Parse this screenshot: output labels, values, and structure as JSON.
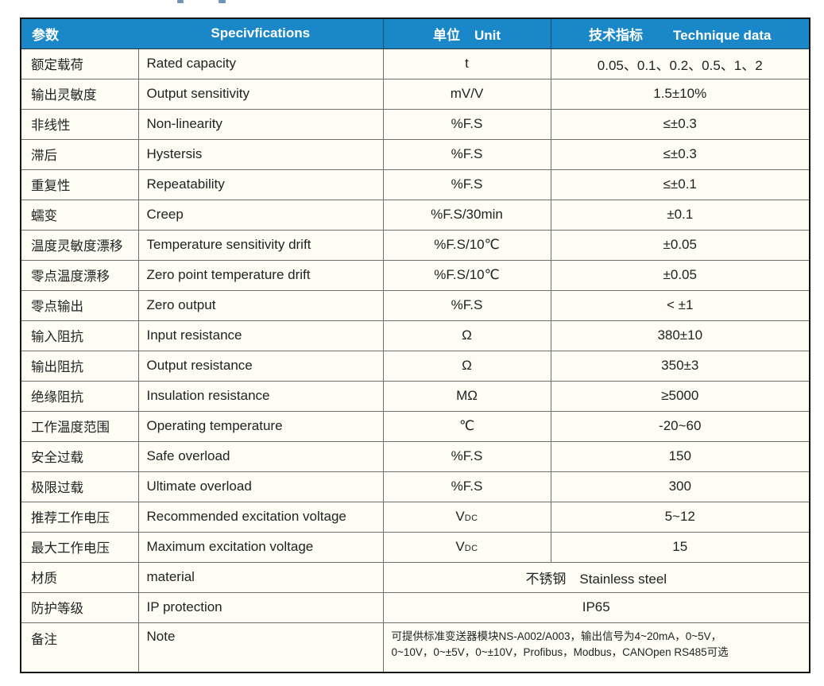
{
  "colors": {
    "header_bg": "#1a87c9",
    "header_text": "#ffffff",
    "body_bg": "#fdfdf4",
    "grid_line": "#6f6f6f",
    "outer_border": "#161616",
    "text": "#222222"
  },
  "table": {
    "header": {
      "param": "参数",
      "spec": "Specivfications",
      "unit_cn": "单位",
      "unit_en": "Unit",
      "tech_cn": "技术指标",
      "tech_en": "Technique data"
    },
    "rows": [
      {
        "cn": "额定载荷",
        "en": "Rated capacity",
        "unit": "t",
        "value": "0.05、0.1、0.2、0.5、1、2"
      },
      {
        "cn": "输出灵敏度",
        "en": "Output sensitivity",
        "unit": "mV/V",
        "value": "1.5±10%"
      },
      {
        "cn": "非线性",
        "en": "Non-linearity",
        "unit": "%F.S",
        "value": "≤±0.3"
      },
      {
        "cn": "滞后",
        "en": "Hystersis",
        "unit": "%F.S",
        "value": "≤±0.3"
      },
      {
        "cn": "重复性",
        "en": "Repeatability",
        "unit": "%F.S",
        "value": "≤±0.1"
      },
      {
        "cn": "蠕变",
        "en": "Creep",
        "unit": "%F.S/30min",
        "value": "±0.1"
      },
      {
        "cn": "温度灵敏度漂移",
        "en": "Temperature sensitivity drift",
        "unit": "%F.S/10℃",
        "value": "±0.05"
      },
      {
        "cn": "零点温度漂移",
        "en": "Zero point temperature drift",
        "unit": "%F.S/10℃",
        "value": "±0.05"
      },
      {
        "cn": "零点输出",
        "en": "Zero output",
        "unit": "%F.S",
        "value": "< ±1"
      },
      {
        "cn": "输入阻抗",
        "en": "Input resistance",
        "unit": "Ω",
        "value": "380±10"
      },
      {
        "cn": "输出阻抗",
        "en": "Output resistance",
        "unit": "Ω",
        "value": "350±3"
      },
      {
        "cn": "绝缘阻抗",
        "en": "Insulation resistance",
        "unit": "MΩ",
        "value": "≥5000"
      },
      {
        "cn": "工作温度范围",
        "en": "Operating temperature",
        "unit": "℃",
        "value": "-20~60"
      },
      {
        "cn": "安全过载",
        "en": "Safe overload",
        "unit": "%F.S",
        "value": "150"
      },
      {
        "cn": "极限过载",
        "en": "Ultimate overload",
        "unit": "%F.S",
        "value": "300"
      },
      {
        "cn": "推荐工作电压",
        "en": "Recommended excitation voltage",
        "unit": "V",
        "unit_sub": "DC",
        "value": "5~12"
      },
      {
        "cn": "最大工作电压",
        "en": "Maximum excitation voltage",
        "unit": "V",
        "unit_sub": "DC",
        "value": "15"
      },
      {
        "cn": "材质",
        "en": "material",
        "merged": true,
        "value": "不锈钢　Stainless steel"
      },
      {
        "cn": "防护等级",
        "en": "IP protection",
        "merged": true,
        "value": "IP65"
      },
      {
        "cn": "备注",
        "en": "Note",
        "merged": true,
        "tall": true,
        "lines": [
          "可提供标准变送器模块NS-A002/A003，输出信号为4~20mA，0~5V，",
          "0~10V，0~±5V，0~±10V，Profibus，Modbus，CANOpen RS485可选"
        ]
      }
    ]
  }
}
